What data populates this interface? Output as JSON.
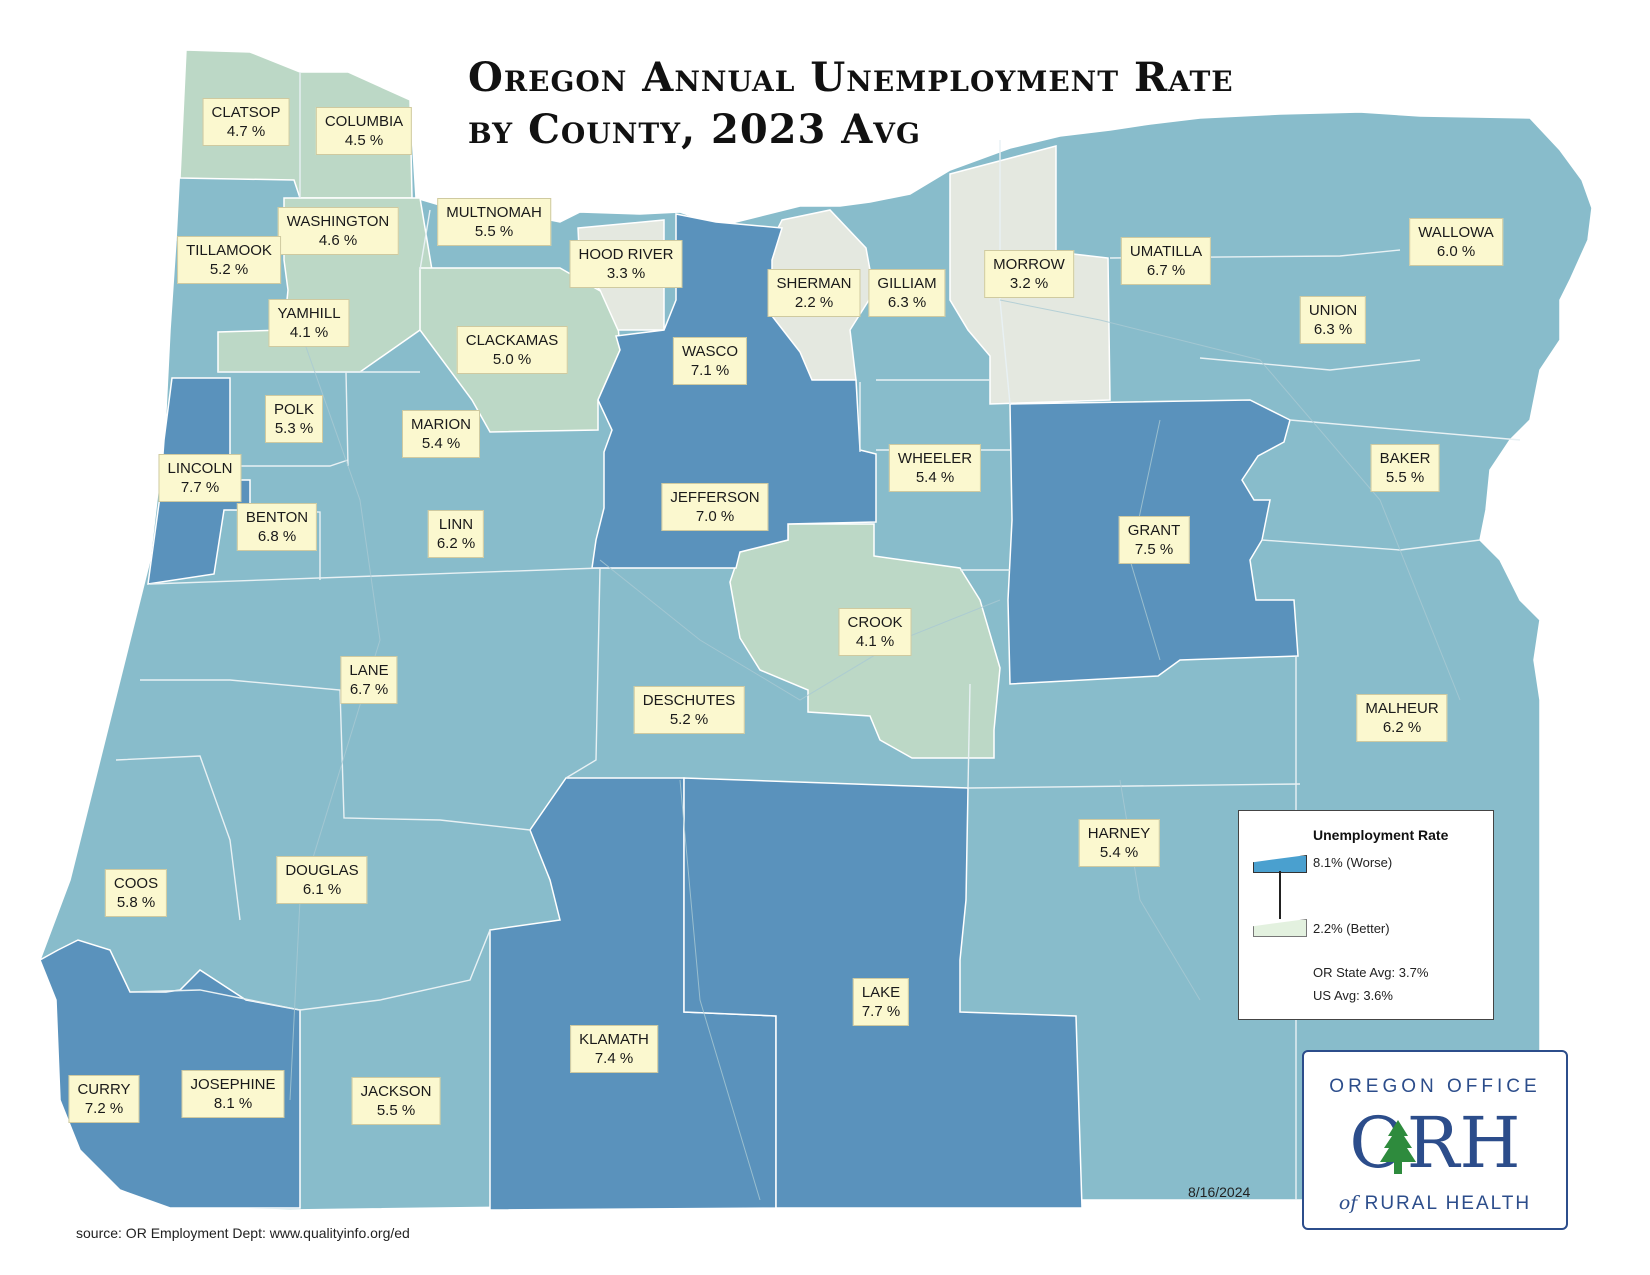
{
  "title_line1": "Oregon Annual Unemployment Rate",
  "title_line2": "by County, 2023 Avg",
  "colors": {
    "worst": "#5a92bc",
    "mid": "#88bccb",
    "better": "#bcd8c6",
    "best": "#e4e8e0",
    "label_bg": "#fbf8cf"
  },
  "counties": [
    {
      "name": "CLATSOP",
      "rate": "4.7 %"
    },
    {
      "name": "COLUMBIA",
      "rate": "4.5 %"
    },
    {
      "name": "WASHINGTON",
      "rate": "4.6 %"
    },
    {
      "name": "MULTNOMAH",
      "rate": "5.5 %"
    },
    {
      "name": "TILLAMOOK",
      "rate": "5.2 %"
    },
    {
      "name": "YAMHILL",
      "rate": "4.1 %"
    },
    {
      "name": "HOOD RIVER",
      "rate": "3.3 %"
    },
    {
      "name": "SHERMAN",
      "rate": "2.2 %"
    },
    {
      "name": "GILLIAM",
      "rate": "6.3 %"
    },
    {
      "name": "MORROW",
      "rate": "3.2 %"
    },
    {
      "name": "UMATILLA",
      "rate": "6.7 %"
    },
    {
      "name": "WALLOWA",
      "rate": "6.0 %"
    },
    {
      "name": "UNION",
      "rate": "6.3 %"
    },
    {
      "name": "CLACKAMAS",
      "rate": "5.0 %"
    },
    {
      "name": "WASCO",
      "rate": "7.1 %"
    },
    {
      "name": "POLK",
      "rate": "5.3 %"
    },
    {
      "name": "MARION",
      "rate": "5.4 %"
    },
    {
      "name": "LINCOLN",
      "rate": "7.7 %"
    },
    {
      "name": "WHEELER",
      "rate": "5.4 %"
    },
    {
      "name": "BAKER",
      "rate": "5.5 %"
    },
    {
      "name": "BENTON",
      "rate": "6.8 %"
    },
    {
      "name": "LINN",
      "rate": "6.2 %"
    },
    {
      "name": "JEFFERSON",
      "rate": "7.0 %"
    },
    {
      "name": "GRANT",
      "rate": "7.5 %"
    },
    {
      "name": "CROOK",
      "rate": "4.1 %"
    },
    {
      "name": "LANE",
      "rate": "6.7 %"
    },
    {
      "name": "DESCHUTES",
      "rate": "5.2 %"
    },
    {
      "name": "MALHEUR",
      "rate": "6.2 %"
    },
    {
      "name": "HARNEY",
      "rate": "5.4 %"
    },
    {
      "name": "COOS",
      "rate": "5.8 %"
    },
    {
      "name": "DOUGLAS",
      "rate": "6.1 %"
    },
    {
      "name": "LAKE",
      "rate": "7.7 %"
    },
    {
      "name": "KLAMATH",
      "rate": "7.4 %"
    },
    {
      "name": "CURRY",
      "rate": "7.2 %"
    },
    {
      "name": "JOSEPHINE",
      "rate": "8.1 %"
    },
    {
      "name": "JACKSON",
      "rate": "5.5 %"
    }
  ],
  "legend": {
    "title": "Unemployment Rate",
    "high": "8.1% (Worse)",
    "low": "2.2% (Better)",
    "state_avg": "OR State Avg: 3.7%",
    "us_avg": "US Avg: 3.6%"
  },
  "logo": {
    "top": "OREGON OFFICE",
    "mid": "ORH",
    "bot_prefix": "of",
    "bot_main": "RURAL HEALTH"
  },
  "date": "8/16/2024",
  "source": "source: OR Employment Dept: www.qualityinfo.org/ed"
}
